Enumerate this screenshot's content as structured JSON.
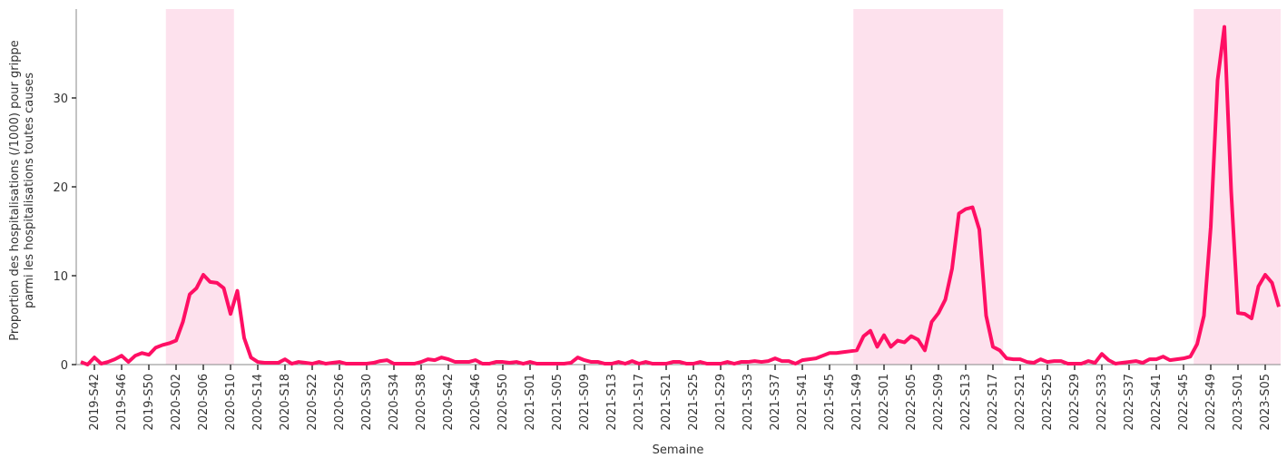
{
  "chart_data": {
    "type": "line",
    "ylabel": [
      "Proportion des hospitalisations (/1000) pour grippe",
      "parmi les hospitalisations toutes causes"
    ],
    "xlabel": "Semaine",
    "categories": [
      null,
      null,
      "2019-S42",
      null,
      null,
      null,
      "2019-S46",
      null,
      null,
      null,
      "2019-S50",
      null,
      null,
      null,
      "2020-S02",
      null,
      null,
      null,
      "2020-S06",
      null,
      null,
      null,
      "2020-S10",
      null,
      null,
      null,
      "2020-S14",
      null,
      null,
      null,
      "2020-S18",
      null,
      null,
      null,
      "2020-S22",
      null,
      null,
      null,
      "2020-S26",
      null,
      null,
      null,
      "2020-S30",
      null,
      null,
      null,
      "2020-S34",
      null,
      null,
      null,
      "2020-S38",
      null,
      null,
      null,
      "2020-S42",
      null,
      null,
      null,
      "2020-S46",
      null,
      null,
      null,
      "2020-S50",
      null,
      null,
      null,
      "2021-S01",
      null,
      null,
      null,
      "2021-S05",
      null,
      null,
      null,
      "2021-S09",
      null,
      null,
      null,
      "2021-S13",
      null,
      null,
      null,
      "2021-S17",
      null,
      null,
      null,
      "2021-S21",
      null,
      null,
      null,
      "2021-S25",
      null,
      null,
      null,
      "2021-S29",
      null,
      null,
      null,
      "2021-S33",
      null,
      null,
      null,
      "2021-S37",
      null,
      null,
      null,
      "2021-S41",
      null,
      null,
      null,
      "2021-S45",
      null,
      null,
      null,
      "2021-S49",
      null,
      null,
      null,
      "2022-S01",
      null,
      null,
      null,
      "2022-S05",
      null,
      null,
      null,
      "2022-S09",
      null,
      null,
      null,
      "2022-S13",
      null,
      null,
      null,
      "2022-S17",
      null,
      null,
      null,
      "2022-S21",
      null,
      null,
      null,
      "2022-S25",
      null,
      null,
      null,
      "2022-S29",
      null,
      null,
      null,
      "2022-S33",
      null,
      null,
      null,
      "2022-S37",
      null,
      null,
      null,
      "2022-S41",
      null,
      null,
      null,
      "2022-S45",
      null,
      null,
      null,
      "2022-S49",
      null,
      null,
      null,
      "2023-S01",
      null,
      null,
      null,
      "2023-S05",
      null,
      null
    ],
    "series": [
      {
        "color": "#ff0f64",
        "values": [
          0.3,
          0.0,
          0.8,
          0.1,
          0.3,
          0.6,
          1.0,
          0.3,
          1.0,
          1.3,
          1.1,
          1.9,
          2.2,
          2.4,
          2.7,
          4.8,
          7.9,
          8.6,
          10.1,
          9.3,
          9.2,
          8.6,
          5.7,
          8.3,
          3.0,
          0.8,
          0.3,
          0.2,
          0.2,
          0.2,
          0.6,
          0.1,
          0.3,
          0.2,
          0.1,
          0.3,
          0.1,
          0.2,
          0.3,
          0.1,
          0.1,
          0.1,
          0.1,
          0.2,
          0.4,
          0.5,
          0.1,
          0.1,
          0.1,
          0.1,
          0.3,
          0.6,
          0.5,
          0.8,
          0.6,
          0.3,
          0.3,
          0.3,
          0.5,
          0.1,
          0.1,
          0.3,
          0.3,
          0.2,
          0.3,
          0.1,
          0.3,
          0.1,
          0.1,
          0.1,
          0.1,
          0.1,
          0.2,
          0.8,
          0.5,
          0.3,
          0.3,
          0.1,
          0.1,
          0.3,
          0.1,
          0.4,
          0.1,
          0.3,
          0.1,
          0.1,
          0.1,
          0.3,
          0.3,
          0.1,
          0.1,
          0.3,
          0.1,
          0.1,
          0.1,
          0.3,
          0.1,
          0.3,
          0.3,
          0.4,
          0.3,
          0.4,
          0.7,
          0.4,
          0.4,
          0.1,
          0.5,
          0.6,
          0.7,
          1.0,
          1.3,
          1.3,
          1.4,
          1.5,
          1.6,
          3.2,
          3.8,
          2.0,
          3.3,
          2.0,
          2.7,
          2.5,
          3.2,
          2.8,
          1.6,
          4.8,
          5.8,
          7.3,
          10.8,
          17.0,
          17.5,
          17.7,
          15.2,
          5.5,
          2.0,
          1.6,
          0.7,
          0.6,
          0.6,
          0.3,
          0.2,
          0.6,
          0.3,
          0.4,
          0.4,
          0.1,
          0.1,
          0.1,
          0.4,
          0.2,
          1.2,
          0.5,
          0.1,
          0.2,
          0.3,
          0.4,
          0.2,
          0.6,
          0.6,
          0.9,
          0.5,
          0.6,
          0.7,
          0.9,
          2.3,
          5.5,
          15.5,
          32.0,
          38.0,
          19.5,
          5.8,
          5.7,
          5.2,
          8.8,
          10.1,
          9.2,
          6.5
        ]
      }
    ],
    "highlight_ranges": [
      [
        13,
        22
      ],
      [
        114,
        135
      ],
      [
        164,
        176
      ]
    ],
    "highlight_color": "#fde1ed",
    "ylim": [
      0,
      40
    ],
    "yticks": [
      0,
      10,
      20,
      30
    ],
    "grid": false
  }
}
